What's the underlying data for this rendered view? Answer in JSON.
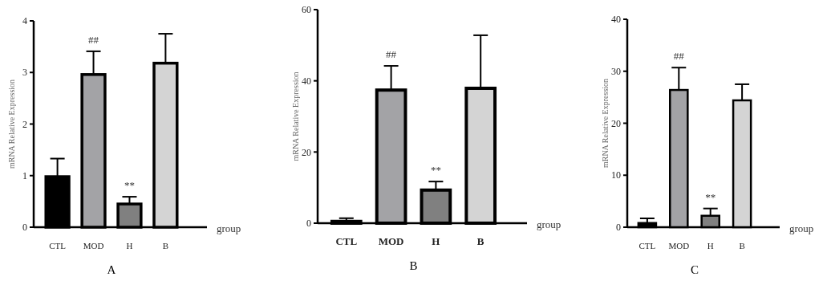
{
  "chart_data": [
    {
      "type": "bar",
      "title": "A",
      "xlabel": "group",
      "ylabel": "mRNA Relative Expression",
      "categories": [
        "CTL",
        "MOD",
        "H",
        "B"
      ],
      "values": [
        0.98,
        2.96,
        0.45,
        3.18
      ],
      "errors": [
        0.35,
        0.45,
        0.14,
        0.57
      ],
      "colors": [
        "#000000",
        "#a3a3a6",
        "#808080",
        "#d4d4d4"
      ],
      "ylim": [
        0,
        4
      ],
      "yticks": [
        0,
        1,
        2,
        3,
        4
      ],
      "annotations": [
        "##",
        "**"
      ]
    },
    {
      "type": "bar",
      "title": "B",
      "xlabel": "group",
      "ylabel": "mRNA Relative Expression",
      "categories": [
        "CTL",
        "MOD",
        "H",
        "B"
      ],
      "values": [
        0.5,
        37.4,
        9.3,
        37.9
      ],
      "errors": [
        0.9,
        6.8,
        2.4,
        14.9
      ],
      "colors": [
        "#000000",
        "#a3a3a6",
        "#808080",
        "#d4d4d4"
      ],
      "ylim": [
        0,
        60
      ],
      "yticks": [
        0,
        20,
        40,
        60
      ],
      "annotations": [
        "##",
        "**"
      ]
    },
    {
      "type": "bar",
      "title": "C",
      "xlabel": "group",
      "ylabel": "mRNA Relative Expression",
      "categories": [
        "CTL",
        "MOD",
        "H",
        "B"
      ],
      "values": [
        0.8,
        26.4,
        2.2,
        24.4
      ],
      "errors": [
        0.9,
        4.3,
        1.4,
        3.1
      ],
      "colors": [
        "#000000",
        "#a3a3a6",
        "#808080",
        "#d4d4d4"
      ],
      "ylim": [
        0,
        40
      ],
      "yticks": [
        0,
        10,
        20,
        30,
        40
      ],
      "annotations": [
        "##",
        "**"
      ]
    }
  ]
}
